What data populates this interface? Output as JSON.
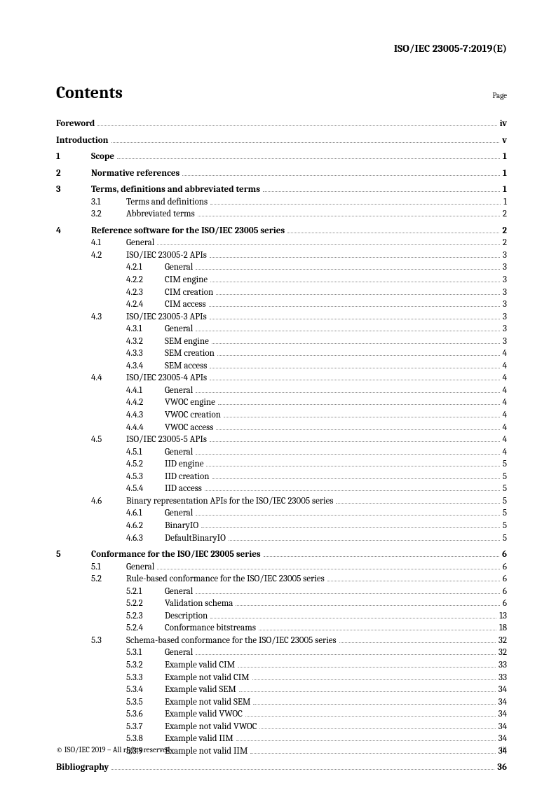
{
  "header": "ISO/IEC 23005-7:2019(E)",
  "contentsTitle": "Contents",
  "pageLabel": "Page",
  "footerLeft": "© ISO/IEC 2019 – All rights reserved",
  "footerRight": "iii",
  "toc": [
    {
      "level": 0,
      "num": "",
      "text": "Foreword",
      "page": "iv",
      "bold": true,
      "spaceAfter": true
    },
    {
      "level": 0,
      "num": "",
      "text": "Introduction",
      "page": "v",
      "bold": true,
      "spaceAfter": true
    },
    {
      "level": 0,
      "num": "1",
      "text": "Scope",
      "page": "1",
      "bold": true,
      "spaceAfter": true
    },
    {
      "level": 0,
      "num": "2",
      "text": "Normative references",
      "page": "1",
      "bold": true,
      "spaceAfter": true
    },
    {
      "level": 0,
      "num": "3",
      "text": "Terms, definitions and abbreviated terms",
      "page": "1",
      "bold": true
    },
    {
      "level": 1,
      "num": "3.1",
      "text": "Terms and definitions",
      "page": "1"
    },
    {
      "level": 1,
      "num": "3.2",
      "text": "Abbreviated terms",
      "page": "2",
      "spaceAfter": true
    },
    {
      "level": 0,
      "num": "4",
      "text": "Reference software for the ISO/IEC 23005 series",
      "page": "2",
      "bold": true
    },
    {
      "level": 1,
      "num": "4.1",
      "text": "General",
      "page": "2"
    },
    {
      "level": 1,
      "num": "4.2",
      "text": "ISO/IEC 23005-2 APIs",
      "page": "3"
    },
    {
      "level": 2,
      "num": "4.2.1",
      "text": "General",
      "page": "3"
    },
    {
      "level": 2,
      "num": "4.2.2",
      "text": "CIM engine",
      "page": "3"
    },
    {
      "level": 2,
      "num": "4.2.3",
      "text": "CIM creation",
      "page": "3"
    },
    {
      "level": 2,
      "num": "4.2.4",
      "text": "CIM access",
      "page": "3"
    },
    {
      "level": 1,
      "num": "4.3",
      "text": "ISO/IEC 23005-3 APIs",
      "page": "3"
    },
    {
      "level": 2,
      "num": "4.3.1",
      "text": "General",
      "page": "3"
    },
    {
      "level": 2,
      "num": "4.3.2",
      "text": "SEM engine",
      "page": "3"
    },
    {
      "level": 2,
      "num": "4.3.3",
      "text": "SEM creation",
      "page": "4"
    },
    {
      "level": 2,
      "num": "4.3.4",
      "text": "SEM access",
      "page": "4"
    },
    {
      "level": 1,
      "num": "4.4",
      "text": "ISO/IEC 23005-4 APIs",
      "page": "4"
    },
    {
      "level": 2,
      "num": "4.4.1",
      "text": "General",
      "page": "4"
    },
    {
      "level": 2,
      "num": "4.4.2",
      "text": "VWOC engine",
      "page": "4"
    },
    {
      "level": 2,
      "num": "4.4.3",
      "text": "VWOC creation",
      "page": "4"
    },
    {
      "level": 2,
      "num": "4.4.4",
      "text": "VWOC access",
      "page": "4"
    },
    {
      "level": 1,
      "num": "4.5",
      "text": "ISO/IEC 23005-5 APIs",
      "page": "4"
    },
    {
      "level": 2,
      "num": "4.5.1",
      "text": "General",
      "page": "4"
    },
    {
      "level": 2,
      "num": "4.5.2",
      "text": "IID engine",
      "page": "5"
    },
    {
      "level": 2,
      "num": "4.5.3",
      "text": "IID creation",
      "page": "5"
    },
    {
      "level": 2,
      "num": "4.5.4",
      "text": "IID access",
      "page": "5"
    },
    {
      "level": 1,
      "num": "4.6",
      "text": "Binary representation APIs for the ISO/IEC 23005 series",
      "page": "5"
    },
    {
      "level": 2,
      "num": "4.6.1",
      "text": "General",
      "page": "5"
    },
    {
      "level": 2,
      "num": "4.6.2",
      "text": "BinaryIO",
      "page": "5"
    },
    {
      "level": 2,
      "num": "4.6.3",
      "text": "DefaultBinaryIO",
      "page": "5",
      "spaceAfter": true
    },
    {
      "level": 0,
      "num": "5",
      "text": "Conformance for the ISO/IEC 23005 series",
      "page": "6",
      "bold": true
    },
    {
      "level": 1,
      "num": "5.1",
      "text": "General",
      "page": "6"
    },
    {
      "level": 1,
      "num": "5.2",
      "text": "Rule-based conformance for the ISO/IEC 23005 series",
      "page": "6"
    },
    {
      "level": 2,
      "num": "5.2.1",
      "text": "General",
      "page": "6"
    },
    {
      "level": 2,
      "num": "5.2.2",
      "text": "Validation schema",
      "page": "6"
    },
    {
      "level": 2,
      "num": "5.2.3",
      "text": "Description",
      "page": "13"
    },
    {
      "level": 2,
      "num": "5.2.4",
      "text": "Conformance bitstreams",
      "page": "18"
    },
    {
      "level": 1,
      "num": "5.3",
      "text": "Schema-based conformance for the ISO/IEC 23005 series",
      "page": "32"
    },
    {
      "level": 2,
      "num": "5.3.1",
      "text": "General",
      "page": "32"
    },
    {
      "level": 2,
      "num": "5.3.2",
      "text": "Example valid CIM",
      "page": "33"
    },
    {
      "level": 2,
      "num": "5.3.3",
      "text": "Example not valid CIM",
      "page": "33"
    },
    {
      "level": 2,
      "num": "5.3.4",
      "text": "Example valid SEM",
      "page": "34"
    },
    {
      "level": 2,
      "num": "5.3.5",
      "text": "Example not valid SEM",
      "page": "34"
    },
    {
      "level": 2,
      "num": "5.3.6",
      "text": "Example valid VWOC",
      "page": "34"
    },
    {
      "level": 2,
      "num": "5.3.7",
      "text": "Example not valid VWOC",
      "page": "34"
    },
    {
      "level": 2,
      "num": "5.3.8",
      "text": "Example valid IIM",
      "page": "34"
    },
    {
      "level": 2,
      "num": "5.3.9",
      "text": "Example not valid IIM",
      "page": "34",
      "spaceAfter": true
    },
    {
      "level": 0,
      "num": "",
      "text": "Bibliography",
      "page": "36",
      "bold": true
    }
  ]
}
